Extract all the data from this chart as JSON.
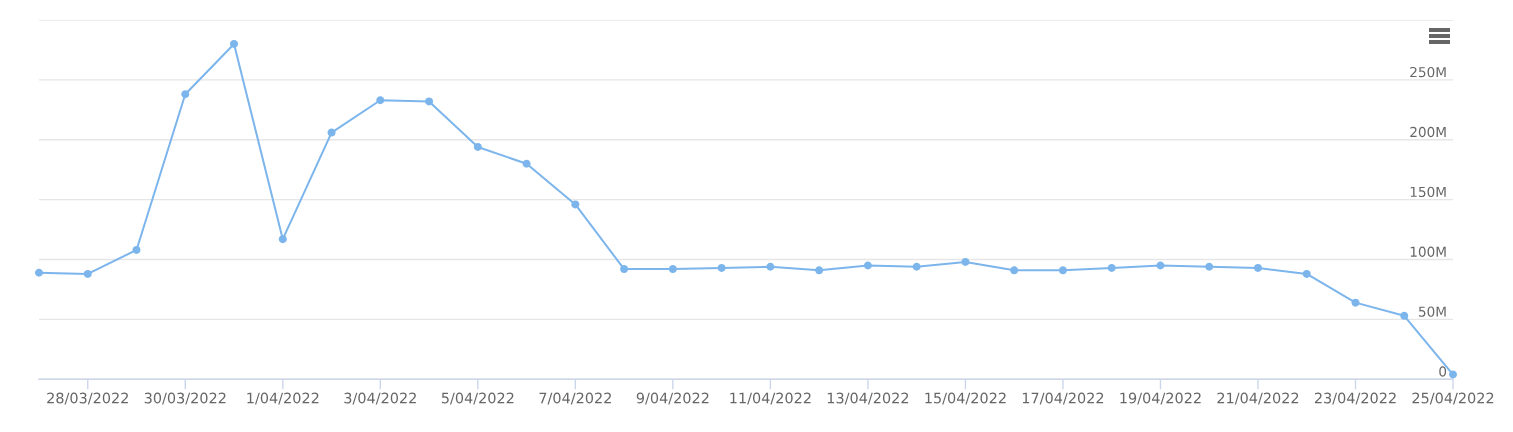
{
  "chart_data": {
    "type": "line",
    "x": [
      "2022-03-27",
      "2022-03-28",
      "2022-03-29",
      "2022-03-30",
      "2022-03-31",
      "2022-04-01",
      "2022-04-02",
      "2022-04-03",
      "2022-04-04",
      "2022-04-05",
      "2022-04-06",
      "2022-04-07",
      "2022-04-08",
      "2022-04-09",
      "2022-04-10",
      "2022-04-11",
      "2022-04-12",
      "2022-04-13",
      "2022-04-14",
      "2022-04-15",
      "2022-04-16",
      "2022-04-17",
      "2022-04-18",
      "2022-04-19",
      "2022-04-20",
      "2022-04-21",
      "2022-04-22",
      "2022-04-23",
      "2022-04-24",
      "2022-04-25"
    ],
    "series": [
      {
        "color": "#7cb5ec",
        "values": [
          89,
          88,
          108,
          238,
          280,
          117,
          206,
          233,
          232,
          194,
          180,
          146,
          92,
          92,
          93,
          94,
          91,
          95,
          94,
          98,
          91,
          91,
          93,
          95,
          94,
          93,
          88,
          64,
          53,
          4
        ]
      }
    ],
    "xlim": [
      "2022-03-27",
      "2022-04-25"
    ],
    "xticks": [
      {
        "value": "2022-03-28",
        "label": "28/03/2022"
      },
      {
        "value": "2022-03-30",
        "label": "30/03/2022"
      },
      {
        "value": "2022-04-01",
        "label": "1/04/2022"
      },
      {
        "value": "2022-04-03",
        "label": "3/04/2022"
      },
      {
        "value": "2022-04-05",
        "label": "5/04/2022"
      },
      {
        "value": "2022-04-07",
        "label": "7/04/2022"
      },
      {
        "value": "2022-04-09",
        "label": "9/04/2022"
      },
      {
        "value": "2022-04-11",
        "label": "11/04/2022"
      },
      {
        "value": "2022-04-13",
        "label": "13/04/2022"
      },
      {
        "value": "2022-04-15",
        "label": "15/04/2022"
      },
      {
        "value": "2022-04-17",
        "label": "17/04/2022"
      },
      {
        "value": "2022-04-19",
        "label": "19/04/2022"
      },
      {
        "value": "2022-04-21",
        "label": "21/04/2022"
      },
      {
        "value": "2022-04-23",
        "label": "23/04/2022"
      },
      {
        "value": "2022-04-25",
        "label": "25/04/2022"
      }
    ],
    "ylim": [
      0,
      300
    ],
    "yticks": [
      0,
      {
        "value": 50,
        "label": "50M"
      },
      {
        "value": 100,
        "label": "100M"
      },
      {
        "value": 150,
        "label": "150M"
      },
      {
        "value": 200,
        "label": "200M"
      },
      {
        "value": 250,
        "label": "250M"
      },
      {
        "value": 300,
        "label": null
      }
    ],
    "grid": "y",
    "marker": "circle",
    "line_style": "solid"
  }
}
